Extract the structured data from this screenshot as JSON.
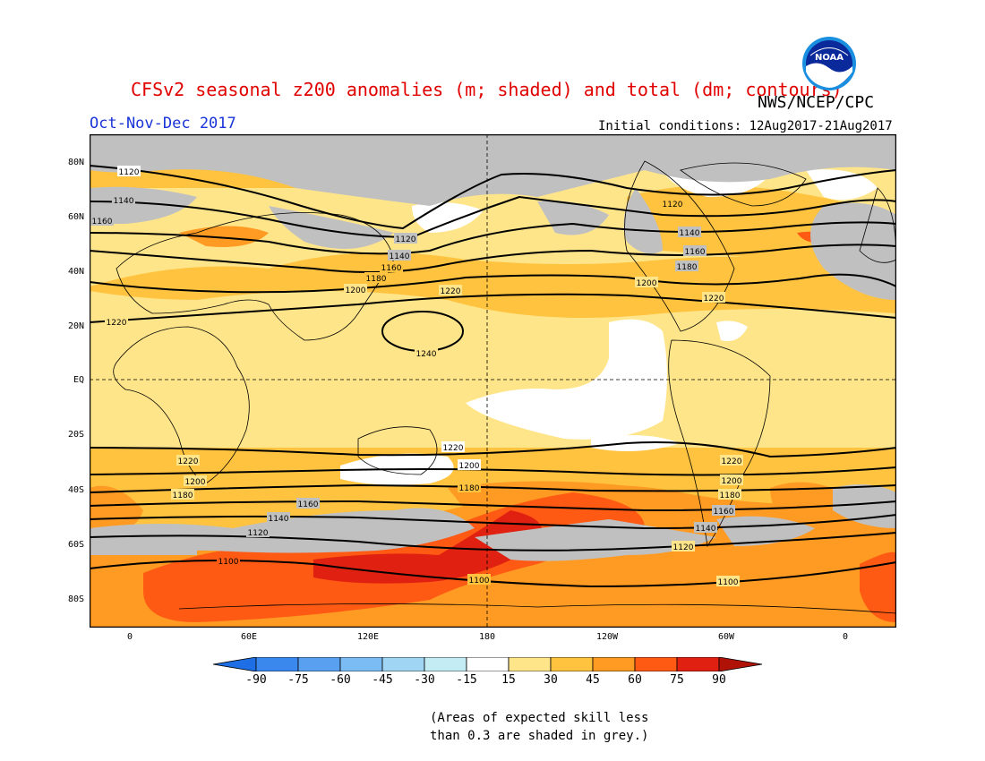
{
  "title": "CFSv2 seasonal z200 anomalies (m; shaded) and total (dm; contours)",
  "agency": "NWS/NCEP/CPC",
  "season": "Oct-Nov-Dec 2017",
  "initial_conditions": "Initial conditions: 12Aug2017-21Aug2017",
  "logo_text": "NOAA",
  "lat_labels": [
    "80N",
    "60N",
    "40N",
    "20N",
    "EQ",
    "20S",
    "40S",
    "60S",
    "80S"
  ],
  "lon_labels": [
    "0",
    "60E",
    "120E",
    "180",
    "120W",
    "60W",
    "0"
  ],
  "colorbar": {
    "labels": [
      "-90",
      "-75",
      "-60",
      "-45",
      "-30",
      "-15",
      "15",
      "30",
      "45",
      "60",
      "75",
      "90"
    ],
    "colors": [
      "#1e6ee6",
      "#3a88ee",
      "#5aa0f0",
      "#7cbcf4",
      "#a0d6f4",
      "#c4ecf4",
      "#ffffff",
      "#ffe58a",
      "#ffc33f",
      "#ff9a22",
      "#ff5a14",
      "#e02010",
      "#b01208"
    ]
  },
  "contour_labels": [
    "1100",
    "1120",
    "1140",
    "1160",
    "1180",
    "1200",
    "1220",
    "1240"
  ],
  "note_line1": "(Areas of expected skill less",
  "note_line2": "than 0.3 are shaded in grey.)"
}
